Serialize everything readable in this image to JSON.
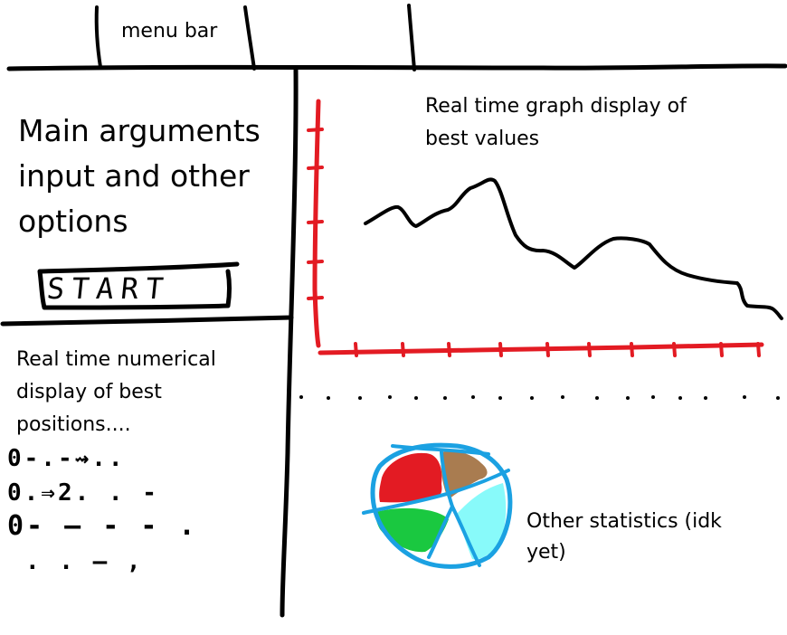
{
  "menu_bar": {
    "label": "menu bar"
  },
  "arguments_panel": {
    "label": "Main arguments\ninput and other\noptions",
    "start_button": "START"
  },
  "positions_panel": {
    "label": "Real time numerical\ndisplay of best\npositions....",
    "sketch_lines": [
      "0-.-⇝..",
      "0.⇒2. . -",
      "0- — - - .",
      ". . — ,"
    ]
  },
  "graph_panel": {
    "label": "Real time graph display of\nbest values",
    "axis_color": "#e31b23",
    "line_color": "#000000"
  },
  "stats_panel": {
    "label": "Other statistics (idk\nyet)",
    "pie_outline_color": "#1ba1e2",
    "slice_colors": [
      "#e31b23",
      "#a97c50",
      "#1ac840",
      "#88fafa"
    ]
  }
}
